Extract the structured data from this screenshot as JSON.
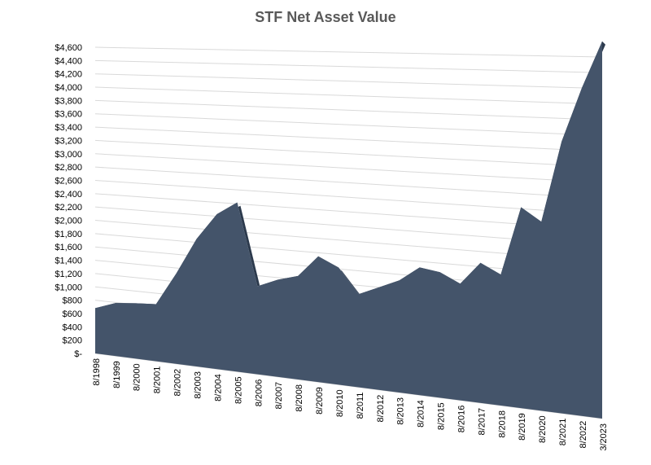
{
  "chart_data": {
    "type": "area",
    "title": "STF Net Asset Value",
    "xlabel": "",
    "ylabel": "",
    "categories": [
      "8/1998",
      "8/1999",
      "8/2000",
      "8/2001",
      "8/2002",
      "8/2003",
      "8/2004",
      "8/2005",
      "8/2006",
      "8/2007",
      "8/2008",
      "8/2009",
      "8/2010",
      "8/2011",
      "8/2012",
      "8/2013",
      "8/2014",
      "8/2015",
      "8/2016",
      "8/2017",
      "8/2018",
      "8/2019",
      "8/2020",
      "8/2021",
      "8/2022",
      "3/2023"
    ],
    "values": [
      680,
      790,
      820,
      840,
      1320,
      1850,
      2230,
      2420,
      1250,
      1370,
      1450,
      1750,
      1620,
      1280,
      1400,
      1520,
      1720,
      1680,
      1550,
      1850,
      1720,
      2620,
      2450,
      3500,
      4200,
      4800
    ],
    "y_ticks": [
      "$-",
      "$200",
      "$400",
      "$600",
      "$800",
      "$1,000",
      "$1,200",
      "$1,400",
      "$1,600",
      "$1,800",
      "$2,000",
      "$2,200",
      "$2,400",
      "$2,600",
      "$2,800",
      "$3,000",
      "$3,200",
      "$3,400",
      "$3,600",
      "$3,800",
      "$4,000",
      "$4,200",
      "$4,400",
      "$4,600"
    ],
    "ylim": [
      0,
      4600
    ],
    "grid": true,
    "legend": "none",
    "fill_color": "#44546a",
    "side_color": "#2c3a4d"
  }
}
